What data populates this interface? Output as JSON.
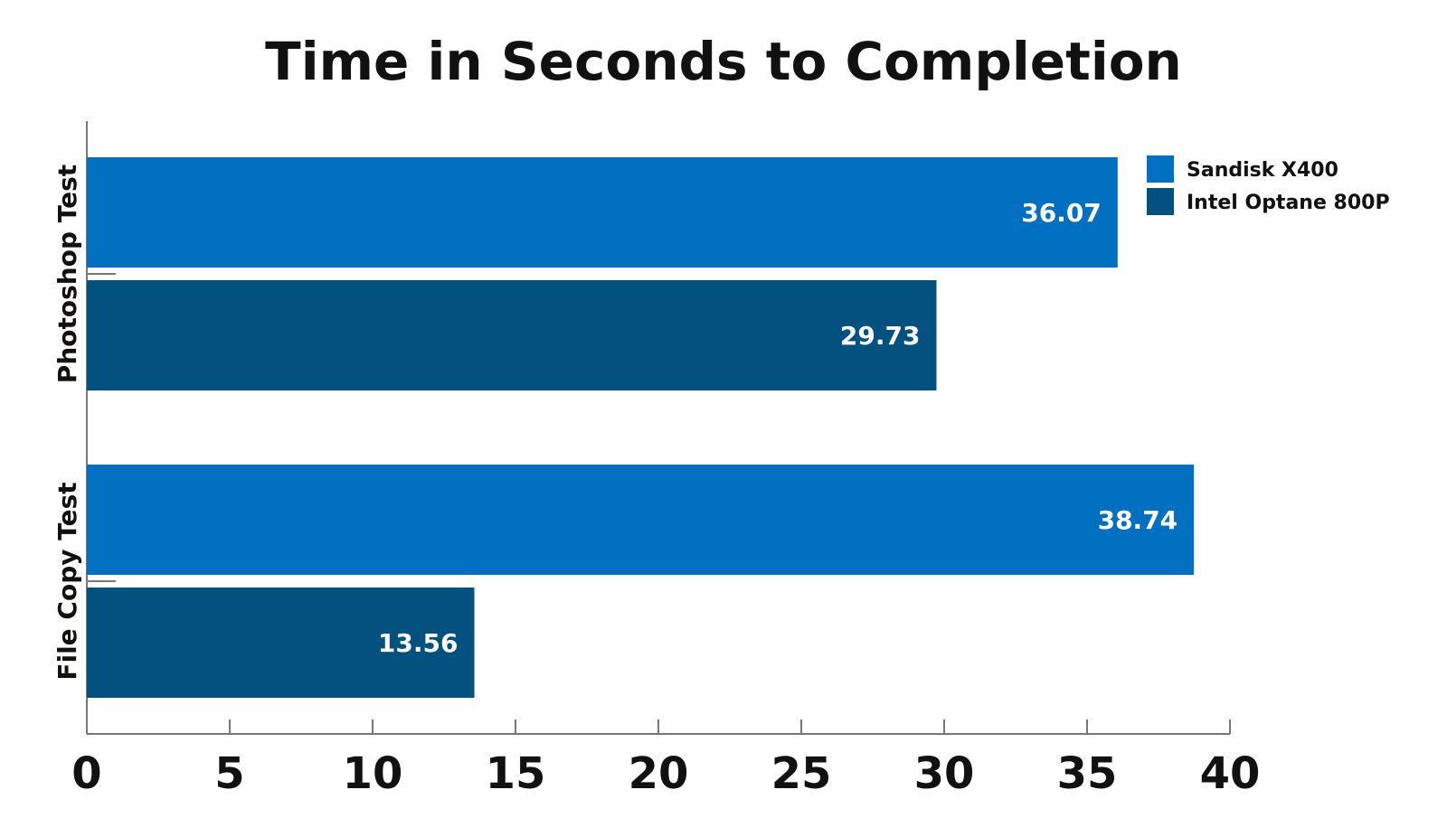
{
  "chart_data": {
    "type": "bar",
    "orientation": "horizontal",
    "title": "Time in Seconds to Completion",
    "categories": [
      "Photoshop Test",
      "File Copy Test"
    ],
    "series": [
      {
        "name": "Sandisk X400",
        "values": [
          36.07,
          38.74
        ],
        "color": "#0270C0"
      },
      {
        "name": "Intel Optane 800P",
        "values": [
          29.73,
          13.56
        ],
        "color": "#03517E"
      }
    ],
    "xlim": [
      0,
      40
    ],
    "x_ticks": [
      0,
      5,
      10,
      15,
      20,
      25,
      30,
      35,
      40
    ],
    "xlabel": "",
    "ylabel": "",
    "grid": false,
    "legend_position": "top-right"
  }
}
